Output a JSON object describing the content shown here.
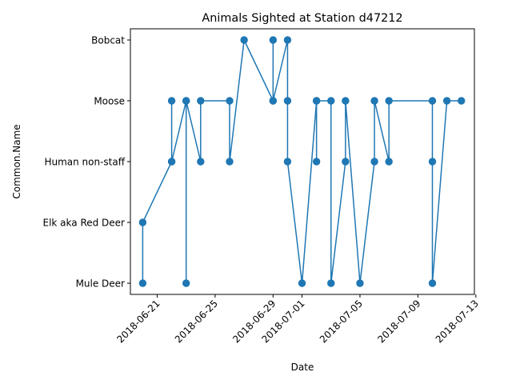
{
  "chart_data": {
    "type": "line",
    "title": "Animals Sighted at Station d47212",
    "xlabel": "Date",
    "ylabel": "Common.Name",
    "x_type": "date",
    "xlim": [
      "2018-06-19",
      "2018-07-13"
    ],
    "x_ticks": [
      "2018-06-21",
      "2018-06-25",
      "2018-06-29",
      "2018-07-01",
      "2018-07-05",
      "2018-07-09",
      "2018-07-13"
    ],
    "x_tick_rotation_deg": 45,
    "categories": [
      "Mule Deer",
      "Elk aka Red Deer",
      "Human non-staff",
      "Moose",
      "Bobcat"
    ],
    "grid": false,
    "legend": "none",
    "colors": {
      "series": "#1f77b4"
    },
    "series": [
      {
        "marker": "circle",
        "points": [
          {
            "x": "2018-06-20",
            "y": "Mule Deer"
          },
          {
            "x": "2018-06-20",
            "y": "Elk aka Red Deer"
          },
          {
            "x": "2018-06-22",
            "y": "Human non-staff"
          },
          {
            "x": "2018-06-22",
            "y": "Moose"
          },
          {
            "x": "2018-06-22",
            "y": "Human non-staff"
          },
          {
            "x": "2018-06-23",
            "y": "Moose"
          },
          {
            "x": "2018-06-23",
            "y": "Mule Deer"
          },
          {
            "x": "2018-06-23",
            "y": "Moose"
          },
          {
            "x": "2018-06-24",
            "y": "Human non-staff"
          },
          {
            "x": "2018-06-24",
            "y": "Moose"
          },
          {
            "x": "2018-06-26",
            "y": "Moose"
          },
          {
            "x": "2018-06-26",
            "y": "Human non-staff"
          },
          {
            "x": "2018-06-27",
            "y": "Bobcat"
          },
          {
            "x": "2018-06-29",
            "y": "Moose"
          },
          {
            "x": "2018-06-29",
            "y": "Bobcat"
          },
          {
            "x": "2018-06-29",
            "y": "Moose"
          },
          {
            "x": "2018-06-30",
            "y": "Bobcat"
          },
          {
            "x": "2018-06-30",
            "y": "Moose"
          },
          {
            "x": "2018-06-30",
            "y": "Human non-staff"
          },
          {
            "x": "2018-07-01",
            "y": "Mule Deer"
          },
          {
            "x": "2018-07-02",
            "y": "Moose"
          },
          {
            "x": "2018-07-02",
            "y": "Human non-staff"
          },
          {
            "x": "2018-07-02",
            "y": "Moose"
          },
          {
            "x": "2018-07-03",
            "y": "Moose"
          },
          {
            "x": "2018-07-03",
            "y": "Mule Deer"
          },
          {
            "x": "2018-07-04",
            "y": "Human non-staff"
          },
          {
            "x": "2018-07-04",
            "y": "Moose"
          },
          {
            "x": "2018-07-05",
            "y": "Mule Deer"
          },
          {
            "x": "2018-07-06",
            "y": "Human non-staff"
          },
          {
            "x": "2018-07-06",
            "y": "Moose"
          },
          {
            "x": "2018-07-07",
            "y": "Human non-staff"
          },
          {
            "x": "2018-07-07",
            "y": "Moose"
          },
          {
            "x": "2018-07-10",
            "y": "Moose"
          },
          {
            "x": "2018-07-10",
            "y": "Human non-staff"
          },
          {
            "x": "2018-07-10",
            "y": "Mule Deer"
          },
          {
            "x": "2018-07-11",
            "y": "Moose"
          },
          {
            "x": "2018-07-12",
            "y": "Moose"
          }
        ]
      }
    ]
  }
}
